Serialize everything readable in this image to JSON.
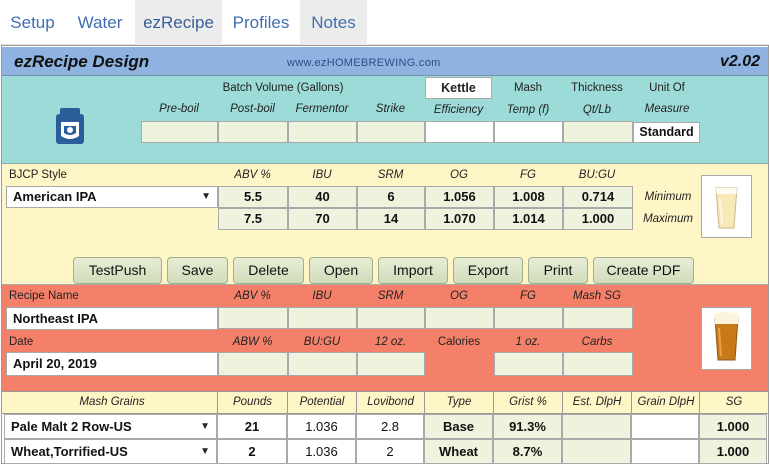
{
  "tabs": [
    "Setup",
    "Water",
    "ezRecipe",
    "Profiles",
    "Notes"
  ],
  "header": {
    "title": "ezRecipe Design",
    "url": "www.ezHOMEBREWING.com",
    "version": "v2.02"
  },
  "batch": {
    "group_label": "Batch Volume (Gallons)",
    "kettle_label": "Kettle",
    "mash_label": "Mash",
    "thickness_label": "Thickness",
    "unit_of_label": "Unit Of",
    "col_labels": [
      "Pre-boil",
      "Post-boil",
      "Fermentor",
      "Strike",
      "Efficiency",
      "Temp (f)",
      "Qt/Lb",
      "Measure"
    ],
    "unit_value": "Standard"
  },
  "bjcp": {
    "style_label": "BJCP Style",
    "style_value": "American IPA",
    "col_labels": [
      "ABV %",
      "IBU",
      "SRM",
      "OG",
      "FG",
      "BU:GU"
    ],
    "min": [
      "5.5",
      "40",
      "6",
      "1.056",
      "1.008",
      "0.714"
    ],
    "max": [
      "7.5",
      "70",
      "14",
      "1.070",
      "1.014",
      "1.000"
    ],
    "min_label": "Minimum",
    "max_label": "Maximum"
  },
  "buttons": [
    "TestPush",
    "Save",
    "Delete",
    "Open",
    "Import",
    "Export",
    "Print",
    "Create PDF"
  ],
  "recipe": {
    "name_label": "Recipe Name",
    "name_value": "Northeast IPA",
    "row1_labels": [
      "ABV %",
      "IBU",
      "SRM",
      "OG",
      "FG",
      "Mash SG"
    ],
    "date_label": "Date",
    "date_value": "April 20, 2019",
    "row2_labels": [
      "ABW %",
      "BU:GU",
      "12 oz.",
      "Calories",
      "1 oz.",
      "Carbs"
    ]
  },
  "grains": {
    "headers": [
      "Mash Grains",
      "Pounds",
      "Potential",
      "Lovibond",
      "Type",
      "Grist %",
      "Est. DlpH",
      "Grain DlpH",
      "SG"
    ],
    "rows": [
      {
        "name": "Pale Malt 2 Row-US",
        "pounds": "21",
        "potential": "1.036",
        "lovibond": "2.8",
        "type": "Base",
        "grist": "91.3%",
        "sg": "1.000"
      },
      {
        "name": "Wheat,Torrified-US",
        "pounds": "2",
        "potential": "1.036",
        "lovibond": "2",
        "type": "Wheat",
        "grist": "8.7%",
        "sg": "1.000"
      }
    ]
  },
  "colors": {
    "header_blue": "#8eb3e0",
    "teal": "#9ddbd8",
    "yellow": "#fff6c8",
    "salmon": "#f4806a",
    "cell_green": "#edf3dd"
  }
}
